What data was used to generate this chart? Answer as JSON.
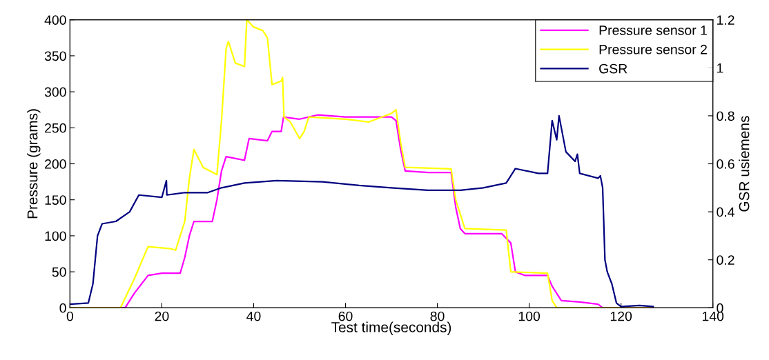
{
  "chart_data": {
    "type": "line",
    "xlabel": "Test time(seconds)",
    "ylabel": "Pressure (grams)",
    "y2label": "GSR usiemens",
    "xlim": [
      0,
      140
    ],
    "xticks": [
      0,
      20,
      40,
      60,
      80,
      100,
      120,
      140
    ],
    "ylim": [
      0,
      400
    ],
    "yticks": [
      0,
      50,
      100,
      150,
      200,
      250,
      300,
      350,
      400
    ],
    "y2lim": [
      0,
      1.2
    ],
    "y2ticks": [
      0,
      0.2,
      0.4,
      0.6,
      0.8,
      1,
      1.2
    ],
    "legend": "top right",
    "grid": false,
    "marker": "none",
    "line_style": "solid",
    "series": [
      {
        "name": "Pressure sensor 1",
        "color": "#ff00ff",
        "x": [
          0,
          12,
          14,
          17,
          20,
          24,
          25,
          26,
          27,
          31,
          32,
          33,
          34,
          38,
          39,
          43,
          44,
          46,
          46.5,
          50,
          54,
          60,
          70,
          71,
          72,
          73,
          78,
          83,
          84,
          85,
          86,
          94,
          96,
          97,
          99,
          104,
          105,
          107,
          111,
          115,
          116,
          127
        ],
        "values": [
          0,
          0,
          20,
          45,
          48,
          48,
          70,
          100,
          120,
          120,
          150,
          190,
          210,
          205,
          235,
          232,
          245,
          245,
          265,
          262,
          268,
          265,
          265,
          260,
          220,
          190,
          188,
          188,
          140,
          110,
          103,
          103,
          90,
          50,
          45,
          45,
          30,
          10,
          8,
          5,
          0,
          0
        ]
      },
      {
        "name": "Pressure sensor 2",
        "color": "#ffff00",
        "x": [
          0,
          11,
          14,
          16,
          17,
          22,
          23,
          24,
          25,
          25.5,
          26,
          27,
          29,
          32,
          33,
          34,
          34.5,
          36,
          38,
          38.5,
          40,
          42,
          43,
          44,
          46,
          46.3,
          46.6,
          48,
          50,
          51,
          52,
          60,
          65,
          70,
          71,
          72,
          73,
          83,
          84,
          86,
          95,
          96,
          104,
          105,
          106,
          127
        ],
        "values": [
          0,
          0,
          40,
          70,
          85,
          82,
          80,
          100,
          120,
          150,
          180,
          220,
          195,
          185,
          260,
          360,
          370,
          340,
          335,
          400,
          390,
          385,
          375,
          310,
          315,
          320,
          265,
          258,
          235,
          245,
          265,
          262,
          258,
          270,
          275,
          230,
          195,
          193,
          150,
          110,
          108,
          50,
          48,
          10,
          0,
          0
        ]
      },
      {
        "name": "GSR",
        "color": "#000080",
        "axis": "y2",
        "x": [
          0,
          4,
          5,
          5.5,
          6,
          7,
          10,
          13,
          15,
          20,
          21,
          21.1,
          25,
          30,
          33,
          38,
          45,
          55,
          63,
          70,
          78,
          85,
          90,
          95,
          97,
          102,
          104,
          105,
          106,
          106.5,
          108,
          110,
          110.5,
          111,
          115,
          115.5,
          116,
          116.5,
          117,
          118,
          119,
          120,
          124,
          127
        ],
        "values": [
          0.015,
          0.02,
          0.1,
          0.2,
          0.3,
          0.35,
          0.36,
          0.4,
          0.47,
          0.46,
          0.53,
          0.47,
          0.48,
          0.48,
          0.5,
          0.52,
          0.53,
          0.525,
          0.51,
          0.5,
          0.49,
          0.49,
          0.5,
          0.52,
          0.58,
          0.56,
          0.56,
          0.78,
          0.7,
          0.8,
          0.65,
          0.61,
          0.64,
          0.56,
          0.54,
          0.55,
          0.5,
          0.2,
          0.15,
          0.1,
          0.02,
          0.005,
          0.01,
          0.005
        ]
      }
    ]
  }
}
